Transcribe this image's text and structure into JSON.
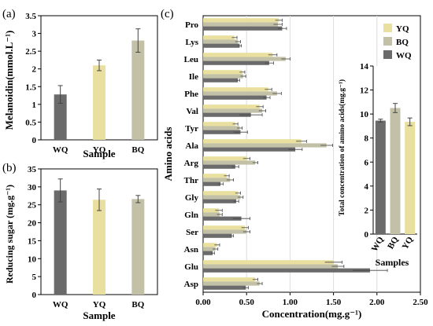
{
  "colors": {
    "WQ": "#6b6b6b",
    "YQ": "#e9df9e",
    "BQ": "#c2c1a8",
    "err": "#444444",
    "grid": "#dcdcdc"
  },
  "chart_data": [
    {
      "panel": "(a)",
      "type": "bar",
      "categories": [
        "WQ",
        "YQ",
        "BQ"
      ],
      "values": [
        1.28,
        2.1,
        2.8
      ],
      "errors": [
        0.25,
        0.15,
        0.33
      ],
      "xlabel": "Sample",
      "ylabel": "Melanoidin(mmol.L⁻¹)",
      "ylim": [
        0,
        3.5
      ],
      "yticks": [
        "0",
        "0.5",
        "1",
        "1.5",
        "2",
        "2.5",
        "3",
        "3.5"
      ],
      "ytick_values": [
        0,
        0.5,
        1,
        1.5,
        2,
        2.5,
        3,
        3.5
      ]
    },
    {
      "panel": "(b)",
      "type": "bar",
      "categories": [
        "WQ",
        "YQ",
        "BQ"
      ],
      "values": [
        29.0,
        26.4,
        26.6
      ],
      "errors": [
        3.2,
        3.0,
        1.0
      ],
      "xlabel": "Sample",
      "ylabel": "Reducing sugar (mg.g⁻¹)",
      "ylim": [
        0,
        35
      ],
      "yticks": [
        "0",
        "5",
        "10",
        "15",
        "20",
        "25",
        "30",
        "35"
      ],
      "ytick_values": [
        0,
        5,
        10,
        15,
        20,
        25,
        30,
        35
      ]
    },
    {
      "panel": "(c)",
      "type": "bar",
      "orientation": "horizontal",
      "categories": [
        "Pro",
        "Lys",
        "Leu",
        "Ile",
        "Phe",
        "Val",
        "Tyr",
        "Ala",
        "Arg",
        "Thr",
        "Gly",
        "Gln",
        "Ser",
        "Asn",
        "Glu",
        "Asp"
      ],
      "series": [
        {
          "name": "YQ",
          "values": [
            0.87,
            0.36,
            0.8,
            0.45,
            0.75,
            0.65,
            0.37,
            1.13,
            0.5,
            0.27,
            0.4,
            0.18,
            0.48,
            0.16,
            1.5,
            0.6
          ],
          "errors": [
            0.04,
            0.03,
            0.05,
            0.03,
            0.04,
            0.04,
            0.03,
            0.06,
            0.04,
            0.03,
            0.03,
            0.04,
            0.04,
            0.03,
            0.1,
            0.03
          ]
        },
        {
          "name": "BQ",
          "values": [
            0.86,
            0.4,
            0.95,
            0.46,
            0.85,
            0.68,
            0.42,
            1.42,
            0.6,
            0.31,
            0.43,
            0.19,
            0.5,
            0.14,
            1.55,
            0.65
          ],
          "errors": [
            0.05,
            0.03,
            0.05,
            0.03,
            0.05,
            0.04,
            0.03,
            0.07,
            0.03,
            0.04,
            0.03,
            0.03,
            0.04,
            0.03,
            0.07,
            0.03
          ]
        },
        {
          "name": "WQ",
          "values": [
            0.91,
            0.42,
            0.76,
            0.4,
            0.73,
            0.55,
            0.43,
            1.06,
            0.37,
            0.2,
            0.38,
            0.44,
            0.33,
            0.11,
            1.92,
            0.49
          ],
          "errors": [
            0.05,
            0.02,
            0.05,
            0.02,
            0.04,
            0.13,
            0.08,
            0.08,
            0.04,
            0.03,
            0.03,
            0.1,
            0.02,
            0.02,
            0.2,
            0.03
          ]
        }
      ],
      "xlabel": "Concentration(mg.g⁻¹)",
      "ylabel": "Amino acids",
      "xlim": [
        0,
        2.5
      ],
      "xticks": [
        "0.00",
        "0.50",
        "1.00",
        "1.50",
        "2.00",
        "2.50"
      ],
      "xtick_values": [
        0,
        0.5,
        1.0,
        1.5,
        2.0,
        2.5
      ],
      "grid": "vertical",
      "legend": "top-right"
    },
    {
      "panel": "inset",
      "type": "bar",
      "categories": [
        "WQ",
        "BQ",
        "YQ"
      ],
      "values": [
        9.45,
        10.5,
        9.35
      ],
      "errors": [
        0.12,
        0.38,
        0.32
      ],
      "xlabel": "Samples",
      "ylabel": "Total concentration of amino acids(mg.g⁻¹)",
      "ylim": [
        0,
        14
      ],
      "yticks": [
        "0",
        "2",
        "4",
        "6",
        "8",
        "10",
        "12",
        "14"
      ],
      "ytick_values": [
        0,
        2,
        4,
        6,
        8,
        10,
        12,
        14
      ]
    }
  ]
}
